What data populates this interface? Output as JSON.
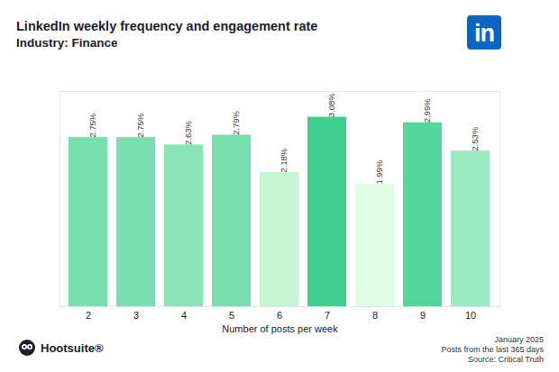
{
  "chart_data": {
    "type": "bar",
    "title": "LinkedIn weekly frequency and engagement rate",
    "subtitle": "Industry: Finance",
    "xlabel": "Number of posts per week",
    "categories": [
      "2",
      "3",
      "4",
      "5",
      "6",
      "7",
      "8",
      "9",
      "10"
    ],
    "values": [
      2.75,
      2.75,
      2.63,
      2.79,
      2.18,
      3.08,
      1.99,
      2.99,
      2.53
    ],
    "value_labels": [
      "2.75%",
      "2.75%",
      "2.63%",
      "2.79%",
      "2.18%",
      "3.08%",
      "1.99%",
      "2.99%",
      "2.53%"
    ],
    "colors": [
      "#7adfae",
      "#7adfae",
      "#8ae4b6",
      "#78dead",
      "#c6f5d4",
      "#3ecf8e",
      "#e1fde5",
      "#52d69b",
      "#9beac1"
    ],
    "ylim": [
      0,
      3.5
    ],
    "data_labels": true,
    "tick_labels": "x",
    "grid": false,
    "caption": [
      "January 2025",
      "Posts from the last 365 days",
      "Source: Critical Truth"
    ],
    "brand": "Hootsuite®",
    "platform_logo": "in"
  }
}
